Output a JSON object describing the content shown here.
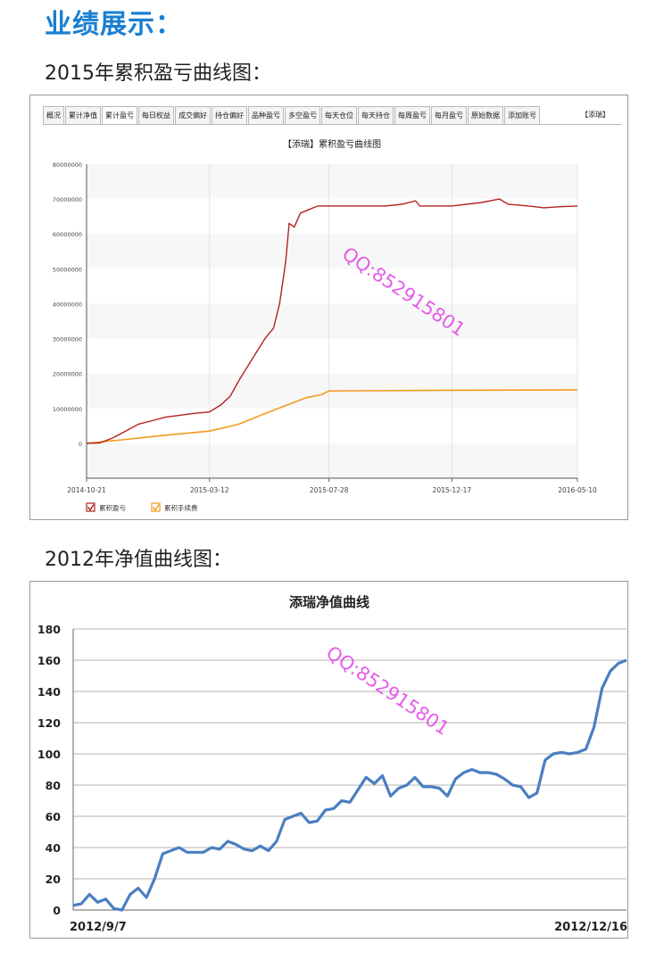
{
  "page": {
    "heading": "业绩展示：",
    "section1_title": "2015年累积盈亏曲线图：",
    "section2_title": "2012年净值曲线图："
  },
  "panel1": {
    "tabs": [
      "概况",
      "累计净值",
      "累计盈亏",
      "每日权益",
      "成交偏好",
      "持仓偏好",
      "品种盈亏",
      "多空盈亏",
      "每天仓位",
      "每天持仓",
      "每周盈亏",
      "每月盈亏",
      "原始数据",
      "添加账号"
    ],
    "active_tab": "累计盈亏",
    "account_label": "【添瑞】"
  },
  "watermark": "QQ:852915801",
  "colors": {
    "heading": "#1a7fd1",
    "profit": "#b22222",
    "fees": "#f39a1e",
    "nav": "#4a7fc1",
    "watermark": "#e040e8"
  },
  "chart_data": [
    {
      "type": "line",
      "title": "【添瑞】累积盈亏曲线图",
      "x_ticks": [
        "2014-10-21",
        "2015-03-12",
        "2015-07-28",
        "2015-12-17",
        "2016-05-10"
      ],
      "y_ticks": [
        "80000000",
        "70000000",
        "60000000",
        "50000000",
        "40000000",
        "30000000",
        "20000000",
        "10000000",
        "0"
      ],
      "ylim": [
        -10000000,
        80000000
      ],
      "x_range": [
        "2014-10-21",
        "2016-05-10"
      ],
      "grid": "vertical",
      "legend_position": "bottom-left",
      "series": [
        {
          "name": "累积盈亏",
          "color": "#b22222",
          "points": [
            [
              "2014-10-21",
              0
            ],
            [
              "2014-11-05",
              100000
            ],
            [
              "2014-11-20",
              1500000
            ],
            [
              "2014-12-05",
              3500000
            ],
            [
              "2014-12-20",
              5500000
            ],
            [
              "2015-01-05",
              6500000
            ],
            [
              "2015-01-20",
              7500000
            ],
            [
              "2015-02-05",
              8000000
            ],
            [
              "2015-02-20",
              8500000
            ],
            [
              "2015-03-12",
              9000000
            ],
            [
              "2015-03-25",
              11000000
            ],
            [
              "2015-04-05",
              13500000
            ],
            [
              "2015-04-15",
              18000000
            ],
            [
              "2015-04-25",
              22000000
            ],
            [
              "2015-05-05",
              26000000
            ],
            [
              "2015-05-15",
              30000000
            ],
            [
              "2015-05-25",
              33000000
            ],
            [
              "2015-06-01",
              40000000
            ],
            [
              "2015-06-08",
              52000000
            ],
            [
              "2015-06-12",
              63000000
            ],
            [
              "2015-06-18",
              62000000
            ],
            [
              "2015-06-25",
              66000000
            ],
            [
              "2015-07-05",
              67000000
            ],
            [
              "2015-07-15",
              68000000
            ],
            [
              "2015-07-28",
              68000000
            ],
            [
              "2015-09-01",
              68000000
            ],
            [
              "2015-10-01",
              68000000
            ],
            [
              "2015-10-20",
              68500000
            ],
            [
              "2015-11-05",
              69500000
            ],
            [
              "2015-11-10",
              68000000
            ],
            [
              "2015-12-17",
              68000000
            ],
            [
              "2016-01-20",
              69000000
            ],
            [
              "2016-02-10",
              70000000
            ],
            [
              "2016-02-20",
              68500000
            ],
            [
              "2016-03-15",
              68000000
            ],
            [
              "2016-04-01",
              67500000
            ],
            [
              "2016-04-20",
              67800000
            ],
            [
              "2016-05-10",
              68000000
            ]
          ]
        },
        {
          "name": "累积手续费",
          "color": "#f39a1e",
          "points": [
            [
              "2014-10-21",
              0
            ],
            [
              "2014-12-01",
              1000000
            ],
            [
              "2015-01-15",
              2200000
            ],
            [
              "2015-03-12",
              3500000
            ],
            [
              "2015-04-15",
              5500000
            ],
            [
              "2015-05-15",
              8500000
            ],
            [
              "2015-06-10",
              11000000
            ],
            [
              "2015-07-01",
              13000000
            ],
            [
              "2015-07-20",
              14000000
            ],
            [
              "2015-07-28",
              15000000
            ],
            [
              "2015-12-17",
              15200000
            ],
            [
              "2016-05-10",
              15300000
            ]
          ]
        }
      ]
    },
    {
      "type": "line",
      "title": "添瑞净值曲线",
      "x_ticks": [
        "2012/9/7",
        "2012/12/16"
      ],
      "y_ticks": [
        "180",
        "160",
        "140",
        "120",
        "100",
        "80",
        "60",
        "40",
        "20",
        "0"
      ],
      "ylim": [
        0,
        180
      ],
      "x_range": [
        "2012/9/7",
        "2012/12/16"
      ],
      "grid": "horizontal",
      "series": [
        {
          "name": "",
          "color": "#4a7fc1",
          "values": [
            3,
            4,
            10,
            5,
            7,
            1,
            0,
            10,
            14,
            8,
            20,
            36,
            38,
            40,
            37,
            37,
            37,
            40,
            39,
            44,
            42,
            39,
            38,
            41,
            38,
            44,
            58,
            60,
            62,
            56,
            57,
            64,
            65,
            70,
            69,
            77,
            85,
            81,
            86,
            73,
            78,
            80,
            85,
            79,
            79,
            78,
            73,
            84,
            88,
            90,
            88,
            88,
            87,
            84,
            80,
            79,
            72,
            75,
            96,
            100,
            101,
            100,
            101,
            103,
            117,
            142,
            153,
            158,
            160
          ]
        }
      ]
    }
  ]
}
